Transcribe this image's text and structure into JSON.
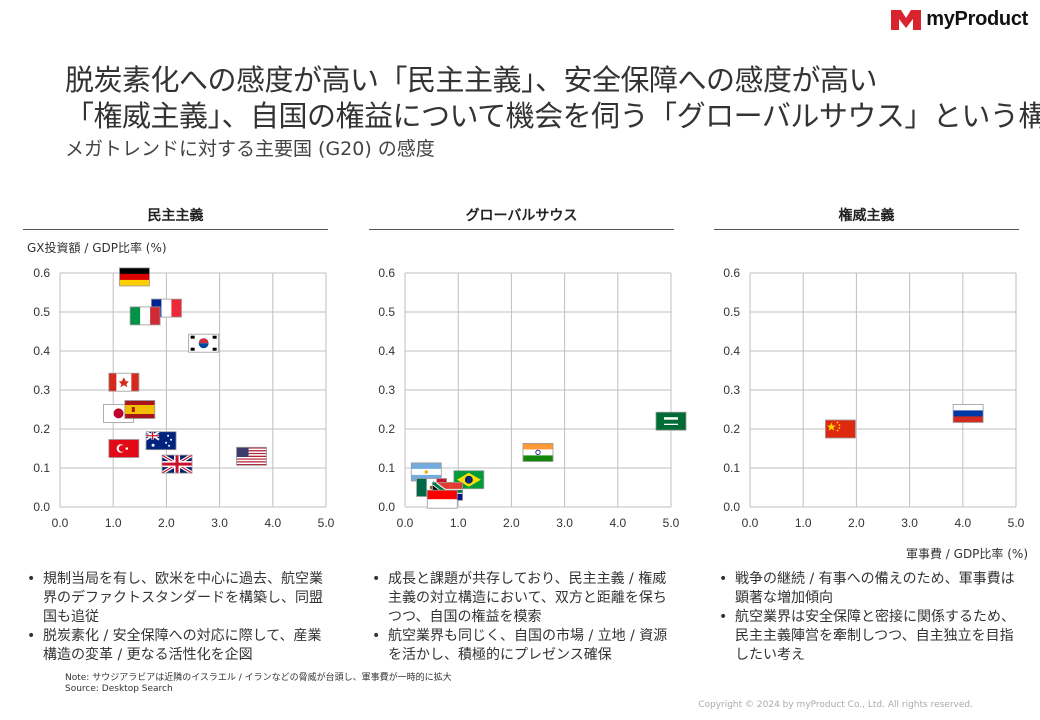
{
  "brand": {
    "name": "myProduct",
    "color": "#d9232e"
  },
  "title_lines": [
    "脱炭素化への感度が高い「民主主義」、安全保障への感度が高い",
    "「権威主義」、自国の権益について機会を伺う「グローバルサウス」という構図"
  ],
  "subtitle": "メガトレンドに対する主要国 (G20) の感度",
  "y_axis_label": "GX投資額 / GDP比率 (%)",
  "x_axis_label": "軍事費 / GDP比率 (%)",
  "chart_data": [
    {
      "type": "scatter",
      "title": "民主主義",
      "xlim": [
        0,
        5
      ],
      "ylim": [
        0,
        0.6
      ],
      "xticks": [
        "0.0",
        "1.0",
        "2.0",
        "3.0",
        "4.0",
        "5.0"
      ],
      "yticks": [
        "0.0",
        "0.1",
        "0.2",
        "0.3",
        "0.4",
        "0.5",
        "0.6"
      ],
      "xlabel": "軍事費 / GDP比率 (%)",
      "ylabel": "GX投資額 / GDP比率 (%)",
      "points": [
        {
          "country": "germany",
          "x": 1.4,
          "y": 0.59
        },
        {
          "country": "france",
          "x": 2.0,
          "y": 0.51
        },
        {
          "country": "italy",
          "x": 1.6,
          "y": 0.49
        },
        {
          "country": "south-korea",
          "x": 2.7,
          "y": 0.42
        },
        {
          "country": "canada",
          "x": 1.2,
          "y": 0.32
        },
        {
          "country": "japan",
          "x": 1.1,
          "y": 0.24
        },
        {
          "country": "spain",
          "x": 1.5,
          "y": 0.25
        },
        {
          "country": "australia",
          "x": 1.9,
          "y": 0.17
        },
        {
          "country": "turkey",
          "x": 1.2,
          "y": 0.15
        },
        {
          "country": "united-states",
          "x": 3.6,
          "y": 0.13
        },
        {
          "country": "united-kingdom",
          "x": 2.2,
          "y": 0.11
        }
      ]
    },
    {
      "type": "scatter",
      "title": "グローバルサウス",
      "xlim": [
        0,
        5
      ],
      "ylim": [
        0,
        0.6
      ],
      "xticks": [
        "0.0",
        "1.0",
        "2.0",
        "3.0",
        "4.0",
        "5.0"
      ],
      "yticks": [
        "0.0",
        "0.1",
        "0.2",
        "0.3",
        "0.4",
        "0.5",
        "0.6"
      ],
      "points": [
        {
          "country": "saudi-arabia",
          "x": 5.0,
          "y": 0.22
        },
        {
          "country": "india",
          "x": 2.5,
          "y": 0.14
        },
        {
          "country": "argentina",
          "x": 0.4,
          "y": 0.09
        },
        {
          "country": "brazil",
          "x": 1.2,
          "y": 0.07
        },
        {
          "country": "mexico",
          "x": 0.5,
          "y": 0.05
        },
        {
          "country": "south-africa",
          "x": 0.8,
          "y": 0.04
        },
        {
          "country": "indonesia",
          "x": 0.7,
          "y": 0.02
        }
      ]
    },
    {
      "type": "scatter",
      "title": "権威主義",
      "xlim": [
        0,
        5
      ],
      "ylim": [
        0,
        0.6
      ],
      "xticks": [
        "0.0",
        "1.0",
        "2.0",
        "3.0",
        "4.0",
        "5.0"
      ],
      "yticks": [
        "0.0",
        "0.1",
        "0.2",
        "0.3",
        "0.4",
        "0.5",
        "0.6"
      ],
      "points": [
        {
          "country": "china",
          "x": 1.7,
          "y": 0.2
        },
        {
          "country": "russia",
          "x": 4.1,
          "y": 0.24
        }
      ]
    }
  ],
  "bullets": [
    [
      "規制当局を有し、欧米を中心に過去、航空業界のデファクトスタンダードを構築し、同盟国も追従",
      "脱炭素化 / 安全保障への対応に際して、産業構造の変革 / 更なる活性化を企図"
    ],
    [
      "成長と課題が共存しており、民主主義 / 権威主義の対立構造において、双方と距離を保ちつつ、自国の権益を模索",
      "航空業界も同じく、自国の市場 / 立地 / 資源を活かし、積極的にプレゼンス確保"
    ],
    [
      "戦争の継続 / 有事への備えのため、軍事費は顕著な増加傾向",
      "航空業界は安全保障と密接に関係するため、民主主義陣営を牽制しつつ、自主独立を目指したい考え"
    ]
  ],
  "note": "Note: サウジアラビアは近隣のイスラエル / イランなどの脅威が台頭し、軍事費が一時的に拡大",
  "source": "Source: Desktop Search",
  "copyright": "Copyright © 2024 by myProduct Co., Ltd.  All rights reserved."
}
